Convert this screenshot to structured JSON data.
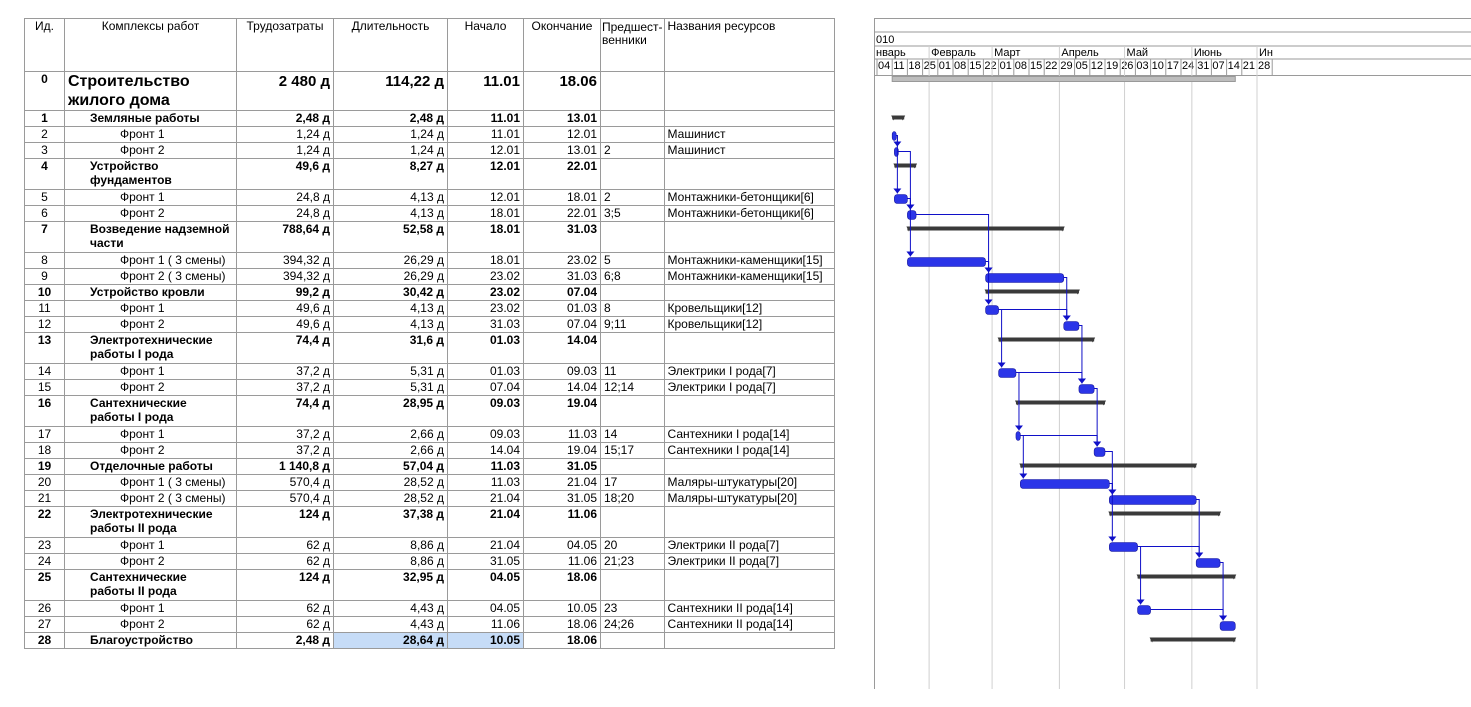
{
  "columns": {
    "id": "Ид.",
    "name": "Комплексы работ",
    "work": "Трудозатраты",
    "duration": "Длительность",
    "start": "Начало",
    "finish": "Окончание",
    "pred": "Предшест-венники",
    "resources": "Названия ресурсов"
  },
  "timescale": {
    "year": "010",
    "months": [
      "нварь",
      "Февраль",
      "Март",
      "Апрель",
      "Май",
      "Июнь",
      "Ин"
    ],
    "weeks": [
      "04",
      "11",
      "18",
      "25",
      "01",
      "08",
      "15",
      "22",
      "01",
      "08",
      "15",
      "22",
      "29",
      "05",
      "12",
      "19",
      "26",
      "03",
      "10",
      "17",
      "24",
      "31",
      "07",
      "14",
      "21",
      "28"
    ]
  },
  "tasks": [
    {
      "id": "0",
      "name": "Строительство жилого дома",
      "work": "2 480 д",
      "duration": "114,22 д",
      "start": "11.01",
      "finish": "18.06",
      "pred": "",
      "res": "",
      "type": "top"
    },
    {
      "id": "1",
      "name": "Земляные работы",
      "work": "2,48 д",
      "duration": "2,48 д",
      "start": "11.01",
      "finish": "13.01",
      "pred": "",
      "res": "",
      "type": "sum"
    },
    {
      "id": "2",
      "name": "Фронт 1",
      "work": "1,24 д",
      "duration": "1,24 д",
      "start": "11.01",
      "finish": "12.01",
      "pred": "",
      "res": "Машинист",
      "type": "task"
    },
    {
      "id": "3",
      "name": "Фронт 2",
      "work": "1,24 д",
      "duration": "1,24 д",
      "start": "12.01",
      "finish": "13.01",
      "pred": "2",
      "res": "Машинист",
      "type": "task"
    },
    {
      "id": "4",
      "name": "Устройство фундаментов",
      "work": "49,6 д",
      "duration": "8,27 д",
      "start": "12.01",
      "finish": "22.01",
      "pred": "",
      "res": "",
      "type": "sum"
    },
    {
      "id": "5",
      "name": "Фронт 1",
      "work": "24,8 д",
      "duration": "4,13 д",
      "start": "12.01",
      "finish": "18.01",
      "pred": "2",
      "res": "Монтажники-бетонщики[6]",
      "type": "task"
    },
    {
      "id": "6",
      "name": "Фронт 2",
      "work": "24,8 д",
      "duration": "4,13 д",
      "start": "18.01",
      "finish": "22.01",
      "pred": "3;5",
      "res": "Монтажники-бетонщики[6]",
      "type": "task"
    },
    {
      "id": "7",
      "name": "Возведение надземной части",
      "work": "788,64 д",
      "duration": "52,58 д",
      "start": "18.01",
      "finish": "31.03",
      "pred": "",
      "res": "",
      "type": "sum"
    },
    {
      "id": "8",
      "name": "Фронт 1 ( 3 смены)",
      "work": "394,32 д",
      "duration": "26,29 д",
      "start": "18.01",
      "finish": "23.02",
      "pred": "5",
      "res": "Монтажники-каменщики[15]",
      "type": "task"
    },
    {
      "id": "9",
      "name": "Фронт 2 ( 3 смены)",
      "work": "394,32 д",
      "duration": "26,29 д",
      "start": "23.02",
      "finish": "31.03",
      "pred": "6;8",
      "res": "Монтажники-каменщики[15]",
      "type": "task"
    },
    {
      "id": "10",
      "name": "Устройство кровли",
      "work": "99,2 д",
      "duration": "30,42 д",
      "start": "23.02",
      "finish": "07.04",
      "pred": "",
      "res": "",
      "type": "sum"
    },
    {
      "id": "11",
      "name": "Фронт 1",
      "work": "49,6 д",
      "duration": "4,13 д",
      "start": "23.02",
      "finish": "01.03",
      "pred": "8",
      "res": "Кровельщики[12]",
      "type": "task"
    },
    {
      "id": "12",
      "name": "Фронт 2",
      "work": "49,6 д",
      "duration": "4,13 д",
      "start": "31.03",
      "finish": "07.04",
      "pred": "9;11",
      "res": "Кровельщики[12]",
      "type": "task"
    },
    {
      "id": "13",
      "name": "Электротехнические работы I рода",
      "work": "74,4 д",
      "duration": "31,6 д",
      "start": "01.03",
      "finish": "14.04",
      "pred": "",
      "res": "",
      "type": "sum"
    },
    {
      "id": "14",
      "name": "Фронт 1",
      "work": "37,2 д",
      "duration": "5,31 д",
      "start": "01.03",
      "finish": "09.03",
      "pred": "11",
      "res": "Электрики I рода[7]",
      "type": "task"
    },
    {
      "id": "15",
      "name": "Фронт 2",
      "work": "37,2 д",
      "duration": "5,31 д",
      "start": "07.04",
      "finish": "14.04",
      "pred": "12;14",
      "res": "Электрики I рода[7]",
      "type": "task"
    },
    {
      "id": "16",
      "name": "Сантехнические работы I рода",
      "work": "74,4 д",
      "duration": "28,95 д",
      "start": "09.03",
      "finish": "19.04",
      "pred": "",
      "res": "",
      "type": "sum"
    },
    {
      "id": "17",
      "name": "Фронт 1",
      "work": "37,2 д",
      "duration": "2,66 д",
      "start": "09.03",
      "finish": "11.03",
      "pred": "14",
      "res": "Сантехники I рода[14]",
      "type": "task"
    },
    {
      "id": "18",
      "name": "Фронт 2",
      "work": "37,2 д",
      "duration": "2,66 д",
      "start": "14.04",
      "finish": "19.04",
      "pred": "15;17",
      "res": "Сантехники I рода[14]",
      "type": "task"
    },
    {
      "id": "19",
      "name": "Отделочные работы",
      "work": "1 140,8 д",
      "duration": "57,04 д",
      "start": "11.03",
      "finish": "31.05",
      "pred": "",
      "res": "",
      "type": "sum"
    },
    {
      "id": "20",
      "name": "Фронт 1 ( 3 смены)",
      "work": "570,4 д",
      "duration": "28,52 д",
      "start": "11.03",
      "finish": "21.04",
      "pred": "17",
      "res": "Маляры-штукатуры[20]",
      "type": "task"
    },
    {
      "id": "21",
      "name": "Фронт 2 ( 3 смены)",
      "work": "570,4 д",
      "duration": "28,52 д",
      "start": "21.04",
      "finish": "31.05",
      "pred": "18;20",
      "res": "Маляры-штукатуры[20]",
      "type": "task"
    },
    {
      "id": "22",
      "name": "Электротехнические работы II рода",
      "work": "124 д",
      "duration": "37,38 д",
      "start": "21.04",
      "finish": "11.06",
      "pred": "",
      "res": "",
      "type": "sum"
    },
    {
      "id": "23",
      "name": "Фронт 1",
      "work": "62 д",
      "duration": "8,86 д",
      "start": "21.04",
      "finish": "04.05",
      "pred": "20",
      "res": "Электрики II рода[7]",
      "type": "task"
    },
    {
      "id": "24",
      "name": "Фронт 2",
      "work": "62 д",
      "duration": "8,86 д",
      "start": "31.05",
      "finish": "11.06",
      "pred": "21;23",
      "res": "Электрики II рода[7]",
      "type": "task"
    },
    {
      "id": "25",
      "name": "Сантехнические работы II рода",
      "work": "124 д",
      "duration": "32,95 д",
      "start": "04.05",
      "finish": "18.06",
      "pred": "",
      "res": "",
      "type": "sum"
    },
    {
      "id": "26",
      "name": "Фронт 1",
      "work": "62 д",
      "duration": "4,43 д",
      "start": "04.05",
      "finish": "10.05",
      "pred": "23",
      "res": "Сантехники II рода[14]",
      "type": "task"
    },
    {
      "id": "27",
      "name": "Фронт 2",
      "work": "62 д",
      "duration": "4,43 д",
      "start": "11.06",
      "finish": "18.06",
      "pred": "24;26",
      "res": "Сантехники II рода[14]",
      "type": "task"
    },
    {
      "id": "28",
      "name": "Благоустройство",
      "work": "2,48 д",
      "duration": "28,64 д",
      "start": "10.05",
      "finish": "18.06",
      "pred": "",
      "res": "",
      "type": "sum",
      "highlight": [
        "duration",
        "start"
      ]
    }
  ],
  "colors": {
    "task_bar": "#2b35e8",
    "summary_bar": "#3a3a3a",
    "link": "#1010c8",
    "project_bar": "#bdbdbd",
    "highlight": "#c6dcf7"
  }
}
